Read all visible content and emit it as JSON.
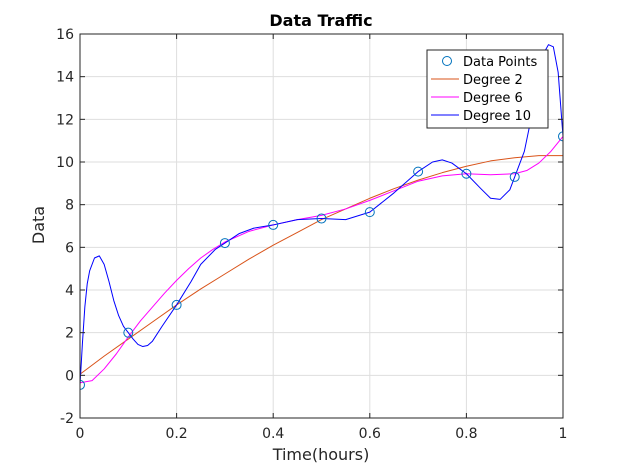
{
  "chart_data": {
    "type": "line",
    "title": "Data Traffic",
    "xlabel": "Time(hours)",
    "ylabel": "Data",
    "xlim": [
      0,
      1
    ],
    "ylim": [
      -2,
      16
    ],
    "xticks": [
      0,
      0.2,
      0.4,
      0.6,
      0.8,
      1
    ],
    "xtick_labels": [
      "0",
      "0.2",
      "0.4",
      "0.6",
      "0.8",
      "1"
    ],
    "yticks": [
      -2,
      0,
      2,
      4,
      6,
      8,
      10,
      12,
      14,
      16
    ],
    "ytick_labels": [
      "-2",
      "0",
      "2",
      "4",
      "6",
      "8",
      "10",
      "12",
      "14",
      "16"
    ],
    "grid": true,
    "legend_position": "top-right",
    "series": [
      {
        "name": "Data Points",
        "kind": "markers",
        "marker": "circle",
        "color": "#0072BD",
        "x": [
          0,
          0.1,
          0.2,
          0.3,
          0.4,
          0.5,
          0.6,
          0.7,
          0.8,
          0.9,
          1.0
        ],
        "y": [
          -0.45,
          2.0,
          3.3,
          6.2,
          7.05,
          7.35,
          7.65,
          9.55,
          9.45,
          9.3,
          11.2
        ]
      },
      {
        "name": "Degree 2",
        "kind": "line",
        "color": "#D95319",
        "x": [
          0,
          0.05,
          0.1,
          0.15,
          0.2,
          0.25,
          0.3,
          0.35,
          0.4,
          0.45,
          0.5,
          0.55,
          0.6,
          0.65,
          0.7,
          0.75,
          0.8,
          0.85,
          0.9,
          0.95,
          1.0
        ],
        "y": [
          0.05,
          0.9,
          1.7,
          2.5,
          3.3,
          4.05,
          4.75,
          5.45,
          6.1,
          6.7,
          7.3,
          7.8,
          8.3,
          8.75,
          9.15,
          9.5,
          9.8,
          10.05,
          10.2,
          10.3,
          10.3
        ]
      },
      {
        "name": "Degree 6",
        "kind": "line",
        "color": "#FF00FF",
        "x": [
          0,
          0.025,
          0.05,
          0.075,
          0.1,
          0.125,
          0.15,
          0.175,
          0.2,
          0.225,
          0.25,
          0.275,
          0.3,
          0.35,
          0.4,
          0.45,
          0.5,
          0.55,
          0.6,
          0.65,
          0.7,
          0.75,
          0.8,
          0.85,
          0.9,
          0.925,
          0.95,
          0.975,
          1.0
        ],
        "y": [
          -0.35,
          -0.25,
          0.3,
          1.0,
          1.8,
          2.55,
          3.2,
          3.85,
          4.45,
          5.0,
          5.5,
          5.9,
          6.25,
          6.75,
          7.05,
          7.3,
          7.5,
          7.8,
          8.2,
          8.65,
          9.1,
          9.35,
          9.45,
          9.4,
          9.45,
          9.6,
          9.95,
          10.5,
          11.2
        ]
      },
      {
        "name": "Degree 10",
        "kind": "line",
        "color": "#0000FF",
        "x": [
          0,
          0.005,
          0.01,
          0.015,
          0.02,
          0.03,
          0.04,
          0.05,
          0.06,
          0.07,
          0.08,
          0.09,
          0.1,
          0.11,
          0.12,
          0.13,
          0.14,
          0.15,
          0.17,
          0.2,
          0.23,
          0.25,
          0.28,
          0.3,
          0.33,
          0.36,
          0.4,
          0.45,
          0.5,
          0.55,
          0.6,
          0.65,
          0.7,
          0.73,
          0.75,
          0.77,
          0.8,
          0.83,
          0.85,
          0.87,
          0.89,
          0.9,
          0.92,
          0.94,
          0.96,
          0.97,
          0.98,
          0.99,
          1.0
        ],
        "y": [
          -0.45,
          1.5,
          3.2,
          4.3,
          4.9,
          5.5,
          5.6,
          5.2,
          4.4,
          3.5,
          2.8,
          2.3,
          2.0,
          1.7,
          1.45,
          1.35,
          1.4,
          1.6,
          2.3,
          3.3,
          4.4,
          5.2,
          5.9,
          6.2,
          6.65,
          6.9,
          7.05,
          7.3,
          7.35,
          7.3,
          7.65,
          8.55,
          9.55,
          10.0,
          10.1,
          9.95,
          9.45,
          8.75,
          8.3,
          8.25,
          8.7,
          9.3,
          10.5,
          12.7,
          15.1,
          15.5,
          15.4,
          14.2,
          11.2
        ]
      }
    ]
  }
}
